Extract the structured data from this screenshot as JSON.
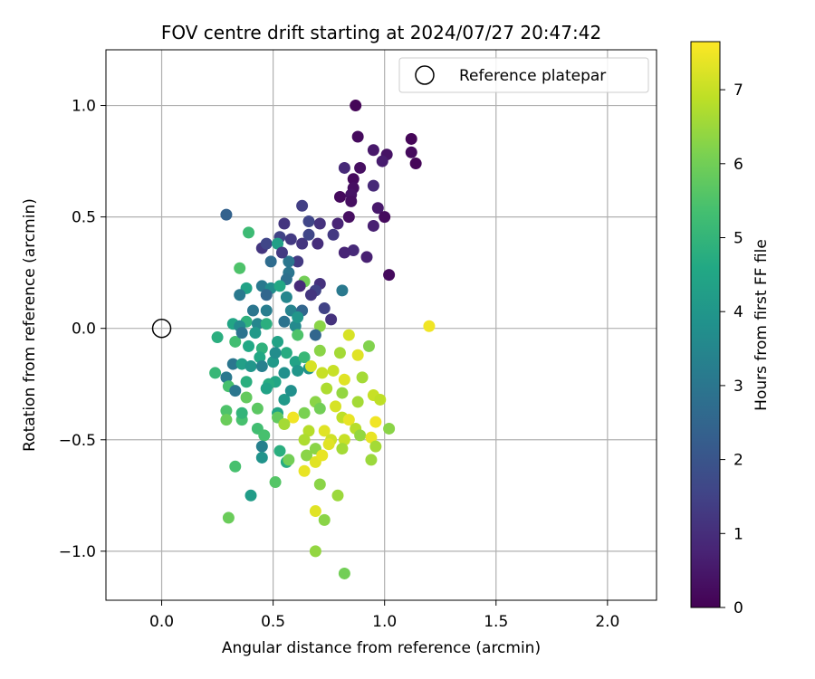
{
  "chart_data": {
    "type": "scatter",
    "title": "FOV centre drift starting at 2024/07/27 20:47:42",
    "xlabel": "Angular distance from reference (arcmin)",
    "ylabel": "Rotation from reference (arcmin)",
    "xlim": [
      -0.25,
      2.22
    ],
    "ylim": [
      -1.22,
      1.25
    ],
    "xticks": [
      0.0,
      0.5,
      1.0,
      1.5,
      2.0
    ],
    "yticks": [
      -1.0,
      -0.5,
      0.0,
      0.5,
      1.0
    ],
    "xtick_labels": [
      "0.0",
      "0.5",
      "1.0",
      "1.5",
      "2.0"
    ],
    "ytick_labels": [
      "−1.0",
      "−0.5",
      "0.0",
      "0.5",
      "1.0"
    ],
    "grid": true,
    "legend": {
      "location": "upper right",
      "label": "Reference platepar",
      "marker": "hollow-circle"
    },
    "reference_point": {
      "x": 0.0,
      "y": 0.0
    },
    "colorbar": {
      "label": "Hours from first FF file",
      "colormap": "viridis",
      "range": [
        0,
        7.65
      ],
      "ticks": [
        0,
        1,
        2,
        3,
        4,
        5,
        6,
        7
      ],
      "tick_labels": [
        "0",
        "1",
        "2",
        "3",
        "4",
        "5",
        "6",
        "7"
      ]
    },
    "points": [
      [
        0.87,
        1.0,
        0.1
      ],
      [
        0.88,
        0.86,
        0.2
      ],
      [
        1.12,
        0.85,
        0.1
      ],
      [
        0.95,
        0.8,
        0.5
      ],
      [
        1.12,
        0.79,
        0.2
      ],
      [
        1.01,
        0.78,
        0.4
      ],
      [
        0.99,
        0.75,
        0.6
      ],
      [
        1.14,
        0.74,
        0.1
      ],
      [
        0.82,
        0.72,
        0.9
      ],
      [
        0.89,
        0.72,
        0.3
      ],
      [
        0.86,
        0.67,
        0.2
      ],
      [
        0.95,
        0.64,
        0.9
      ],
      [
        0.86,
        0.63,
        0.3
      ],
      [
        0.85,
        0.6,
        0.4
      ],
      [
        0.8,
        0.59,
        0.2
      ],
      [
        0.85,
        0.57,
        0.3
      ],
      [
        0.63,
        0.55,
        1.4
      ],
      [
        0.97,
        0.54,
        0.5
      ],
      [
        1.0,
        0.5,
        0.2
      ],
      [
        0.84,
        0.5,
        0.3
      ],
      [
        0.29,
        0.51,
        2.4
      ],
      [
        0.55,
        0.47,
        1.2
      ],
      [
        0.66,
        0.48,
        1.6
      ],
      [
        0.71,
        0.47,
        1.1
      ],
      [
        0.79,
        0.47,
        0.8
      ],
      [
        0.95,
        0.46,
        0.7
      ],
      [
        0.58,
        0.4,
        1.3
      ],
      [
        0.53,
        0.41,
        1.5
      ],
      [
        0.63,
        0.38,
        1.2
      ],
      [
        0.7,
        0.38,
        1.0
      ],
      [
        0.77,
        0.42,
        1.3
      ],
      [
        0.66,
        0.42,
        1.6
      ],
      [
        0.45,
        0.36,
        1.2
      ],
      [
        0.47,
        0.38,
        1.6
      ],
      [
        0.52,
        0.38,
        4.3
      ],
      [
        0.39,
        0.43,
        5.2
      ],
      [
        0.86,
        0.35,
        0.9
      ],
      [
        0.82,
        0.34,
        0.8
      ],
      [
        0.92,
        0.32,
        0.7
      ],
      [
        0.61,
        0.3,
        1.3
      ],
      [
        0.57,
        0.3,
        3.0
      ],
      [
        0.54,
        0.34,
        1.3
      ],
      [
        1.02,
        0.24,
        0.2
      ],
      [
        0.35,
        0.27,
        5.5
      ],
      [
        0.57,
        0.25,
        3.0
      ],
      [
        0.56,
        0.22,
        2.8
      ],
      [
        0.64,
        0.21,
        6.0
      ],
      [
        0.62,
        0.19,
        0.9
      ],
      [
        0.71,
        0.2,
        1.1
      ],
      [
        0.69,
        0.17,
        1.5
      ],
      [
        0.81,
        0.17,
        3.1
      ],
      [
        0.45,
        0.19,
        3.1
      ],
      [
        0.49,
        0.18,
        3.7
      ],
      [
        0.53,
        0.19,
        4.6
      ],
      [
        0.38,
        0.18,
        4.4
      ],
      [
        0.67,
        0.15,
        1.2
      ],
      [
        0.35,
        0.15,
        3.1
      ],
      [
        0.47,
        0.15,
        2.5
      ],
      [
        0.56,
        0.14,
        3.5
      ],
      [
        0.41,
        0.08,
        3.0
      ],
      [
        0.47,
        0.08,
        3.2
      ],
      [
        0.58,
        0.08,
        3.4
      ],
      [
        0.63,
        0.08,
        2.5
      ],
      [
        0.73,
        0.09,
        1.5
      ],
      [
        0.76,
        0.04,
        1.1
      ],
      [
        0.38,
        0.03,
        4.9
      ],
      [
        0.32,
        0.02,
        4.5
      ],
      [
        0.35,
        0.01,
        3.6
      ],
      [
        0.43,
        0.02,
        3.5
      ],
      [
        0.47,
        0.02,
        4.8
      ],
      [
        0.55,
        0.03,
        2.9
      ],
      [
        0.6,
        0.01,
        3.6
      ],
      [
        0.71,
        0.01,
        6.3
      ],
      [
        0.25,
        -0.04,
        4.8
      ],
      [
        0.33,
        -0.06,
        5.3
      ],
      [
        0.39,
        -0.08,
        4.6
      ],
      [
        0.45,
        -0.09,
        4.9
      ],
      [
        0.52,
        -0.06,
        4.4
      ],
      [
        0.61,
        -0.03,
        5.5
      ],
      [
        0.69,
        -0.03,
        2.5
      ],
      [
        0.84,
        -0.03,
        7.2
      ],
      [
        1.2,
        0.01,
        7.5
      ],
      [
        0.24,
        -0.2,
        5.1
      ],
      [
        0.29,
        -0.22,
        3.1
      ],
      [
        0.32,
        -0.16,
        3.0
      ],
      [
        0.36,
        -0.16,
        4.3
      ],
      [
        0.4,
        -0.17,
        4.0
      ],
      [
        0.44,
        -0.13,
        4.6
      ],
      [
        0.5,
        -0.15,
        4.1
      ],
      [
        0.56,
        -0.11,
        4.7
      ],
      [
        0.6,
        -0.15,
        4.4
      ],
      [
        0.64,
        -0.13,
        5.1
      ],
      [
        0.71,
        -0.1,
        6.3
      ],
      [
        0.8,
        -0.11,
        6.6
      ],
      [
        0.88,
        -0.12,
        7.3
      ],
      [
        0.93,
        -0.08,
        6.2
      ],
      [
        0.3,
        -0.26,
        5.4
      ],
      [
        0.33,
        -0.28,
        3.0
      ],
      [
        0.38,
        -0.24,
        4.8
      ],
      [
        0.45,
        -0.17,
        3.3
      ],
      [
        0.51,
        -0.24,
        4.5
      ],
      [
        0.55,
        -0.2,
        3.8
      ],
      [
        0.61,
        -0.19,
        4.0
      ],
      [
        0.66,
        -0.18,
        3.9
      ],
      [
        0.67,
        -0.17,
        7.2
      ],
      [
        0.72,
        -0.2,
        7.0
      ],
      [
        0.77,
        -0.19,
        7.0
      ],
      [
        0.82,
        -0.23,
        7.3
      ],
      [
        0.9,
        -0.22,
        6.6
      ],
      [
        0.74,
        -0.27,
        6.7
      ],
      [
        0.38,
        -0.31,
        5.8
      ],
      [
        0.43,
        -0.36,
        5.7
      ],
      [
        0.48,
        -0.25,
        4.7
      ],
      [
        0.55,
        -0.32,
        4.1
      ],
      [
        0.58,
        -0.28,
        3.8
      ],
      [
        0.69,
        -0.33,
        6.3
      ],
      [
        0.81,
        -0.29,
        6.4
      ],
      [
        0.88,
        -0.33,
        6.6
      ],
      [
        0.95,
        -0.3,
        7.0
      ],
      [
        0.98,
        -0.32,
        6.9
      ],
      [
        0.29,
        -0.37,
        5.5
      ],
      [
        0.29,
        -0.41,
        5.9
      ],
      [
        0.36,
        -0.41,
        5.4
      ],
      [
        0.36,
        -0.38,
        5.0
      ],
      [
        0.52,
        -0.38,
        4.5
      ],
      [
        0.52,
        -0.4,
        5.8
      ],
      [
        0.59,
        -0.4,
        7.5
      ],
      [
        0.64,
        -0.38,
        6.1
      ],
      [
        0.71,
        -0.36,
        6.0
      ],
      [
        0.78,
        -0.35,
        7.2
      ],
      [
        0.81,
        -0.4,
        6.9
      ],
      [
        0.84,
        -0.41,
        7.4
      ],
      [
        0.96,
        -0.42,
        7.5
      ],
      [
        1.02,
        -0.45,
        6.3
      ],
      [
        0.87,
        -0.45,
        6.8
      ],
      [
        0.43,
        -0.45,
        5.3
      ],
      [
        0.55,
        -0.43,
        6.6
      ],
      [
        0.66,
        -0.46,
        6.8
      ],
      [
        0.73,
        -0.46,
        7.3
      ],
      [
        0.76,
        -0.5,
        7.1
      ],
      [
        0.82,
        -0.5,
        7.0
      ],
      [
        0.89,
        -0.48,
        6.4
      ],
      [
        0.94,
        -0.49,
        7.4
      ],
      [
        0.46,
        -0.48,
        5.4
      ],
      [
        0.45,
        -0.53,
        3.3
      ],
      [
        0.53,
        -0.55,
        4.8
      ],
      [
        0.64,
        -0.5,
        6.7
      ],
      [
        0.69,
        -0.54,
        6.3
      ],
      [
        0.75,
        -0.52,
        7.3
      ],
      [
        0.81,
        -0.54,
        6.6
      ],
      [
        0.96,
        -0.53,
        6.6
      ],
      [
        0.33,
        -0.62,
        5.4
      ],
      [
        0.45,
        -0.58,
        3.9
      ],
      [
        0.56,
        -0.6,
        4.7
      ],
      [
        0.57,
        -0.59,
        6.0
      ],
      [
        0.65,
        -0.57,
        6.3
      ],
      [
        0.69,
        -0.6,
        7.3
      ],
      [
        0.72,
        -0.57,
        7.4
      ],
      [
        0.64,
        -0.64,
        7.4
      ],
      [
        0.94,
        -0.59,
        6.5
      ],
      [
        0.4,
        -0.75,
        4.2
      ],
      [
        0.51,
        -0.69,
        5.6
      ],
      [
        0.71,
        -0.7,
        6.3
      ],
      [
        0.79,
        -0.75,
        6.5
      ],
      [
        0.3,
        -0.85,
        5.9
      ],
      [
        0.69,
        -0.82,
        7.3
      ],
      [
        0.73,
        -0.86,
        6.3
      ],
      [
        0.69,
        -1.0,
        6.4
      ],
      [
        0.82,
        -1.1,
        6.0
      ],
      [
        0.49,
        0.3,
        2.7
      ],
      [
        0.61,
        0.05,
        4.0
      ],
      [
        0.42,
        -0.02,
        4.1
      ],
      [
        0.51,
        -0.11,
        3.7
      ],
      [
        0.47,
        -0.27,
        4.4
      ],
      [
        0.36,
        -0.02,
        2.9
      ]
    ]
  }
}
